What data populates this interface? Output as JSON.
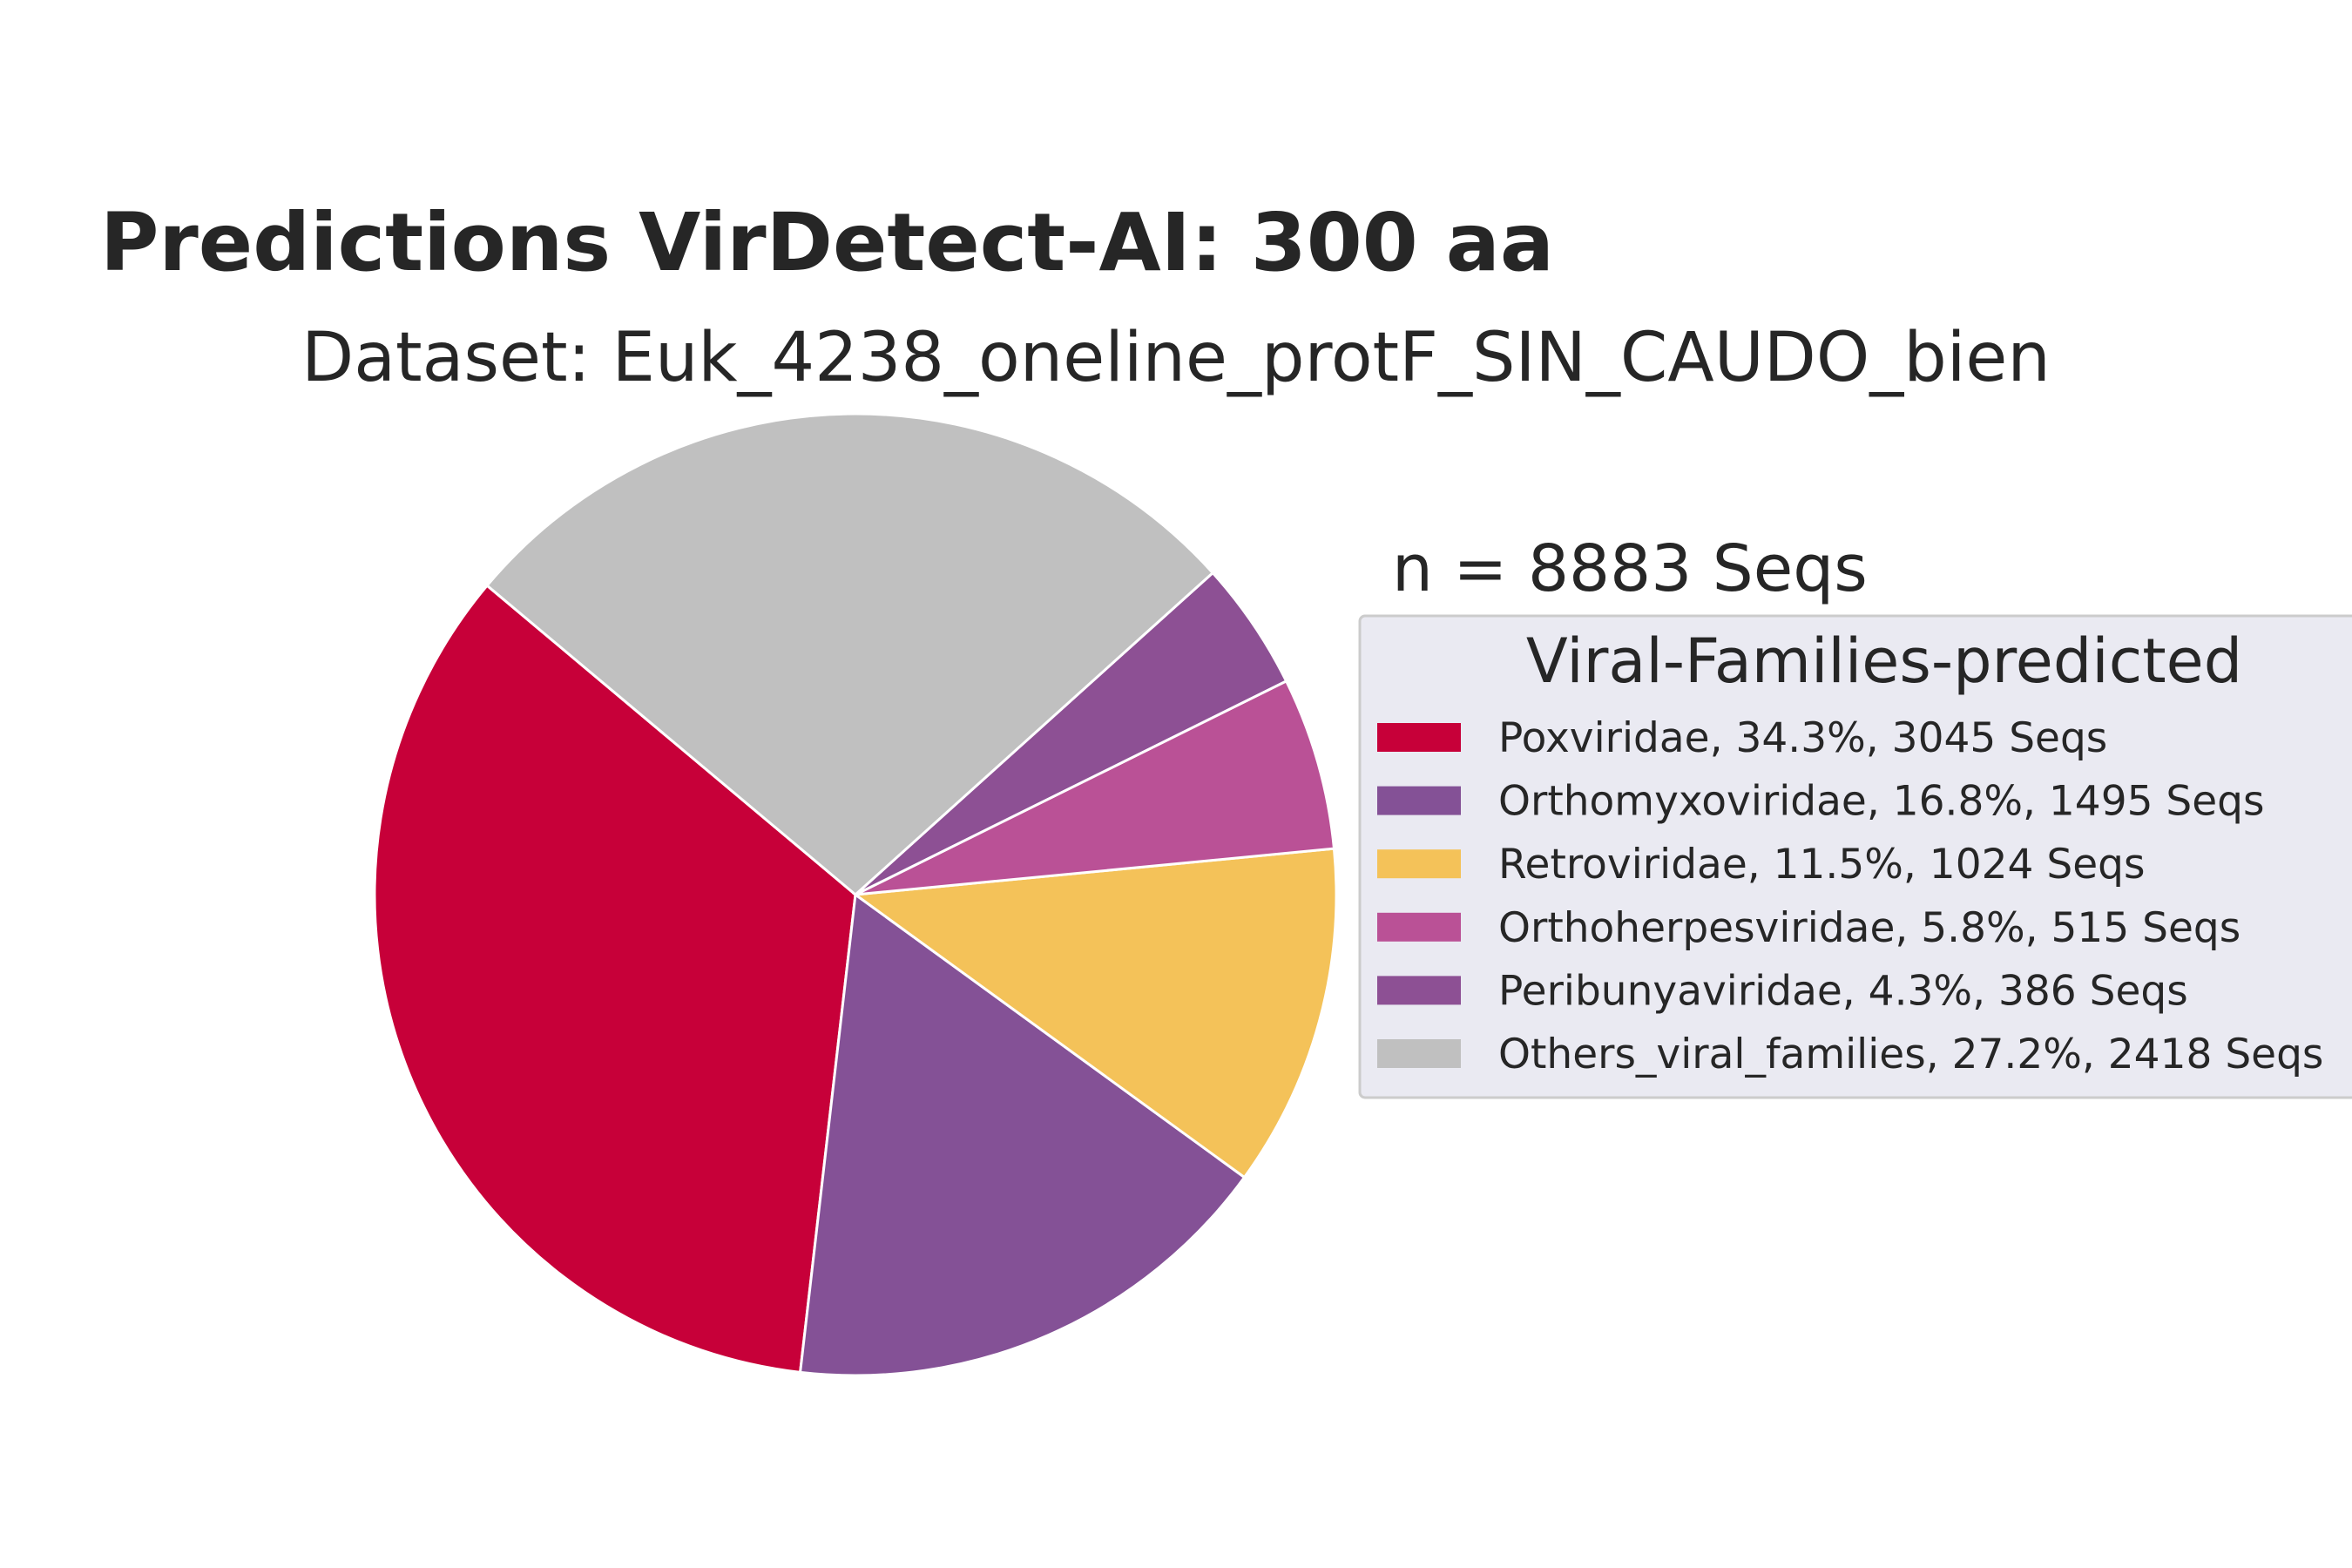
{
  "chart_data": {
    "type": "pie",
    "title": "Predictions VirDetect-AI: 300 aa",
    "subtitle": "Dataset: Euk_4238_oneline_protF_SIN_CAUDO_bien",
    "annotation": "n = 8883 Seqs",
    "legend_title": "Viral-Families-predicted",
    "legend_placement": "right",
    "categories": [
      "Poxviridae",
      "Orthomyxoviridae",
      "Retroviridae",
      "Orthoherpesviridae",
      "Peribunyaviridae",
      "Others_viral_families"
    ],
    "values": [
      3045,
      1495,
      1024,
      515,
      386,
      2418
    ],
    "percentages": [
      34.3,
      16.8,
      11.5,
      5.8,
      4.3,
      27.2
    ],
    "colors": [
      "#c70039",
      "#845196",
      "#f4c259",
      "#ba5196",
      "#8d5094",
      "#c0c0c0"
    ],
    "legend_labels": [
      "Poxviridae, 34.3%, 3045 Seqs",
      "Orthomyxoviridae, 16.8%, 1495 Seqs",
      "Retroviridae, 11.5%, 1024 Seqs",
      "Orthoherpesviridae, 5.8%, 515 Seqs",
      "Peribunyaviridae, 4.3%, 386 Seqs",
      "Others_viral_families, 27.2%, 2418 Seqs"
    ],
    "start_angle_deg": 140,
    "direction": "counterclockwise"
  }
}
